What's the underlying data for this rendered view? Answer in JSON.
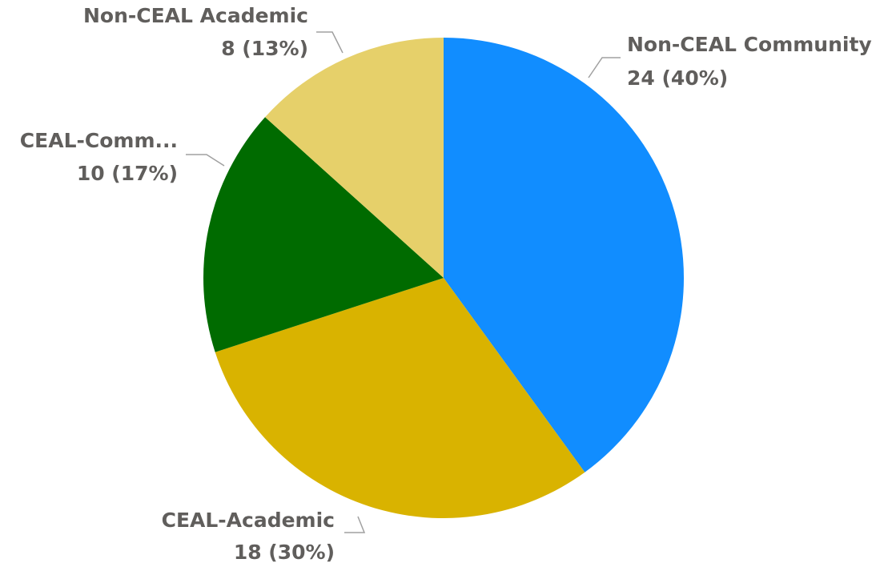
{
  "chart_data": {
    "type": "pie",
    "categories": [
      "Non-CEAL Community",
      "CEAL-Academic",
      "CEAL-Comm...",
      "Non-CEAL Academic"
    ],
    "values": [
      24,
      18,
      10,
      8
    ],
    "value_labels": [
      "24 (40%)",
      "18 (30%)",
      "10 (17%)",
      "8 (13%)"
    ],
    "colors": [
      "#118dff",
      "#d9b300",
      "#006b00",
      "#e6d06a"
    ]
  }
}
